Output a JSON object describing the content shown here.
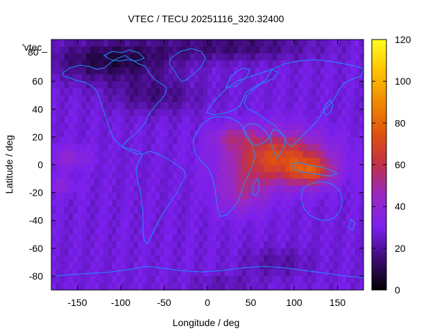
{
  "chart_data": {
    "type": "heatmap",
    "title": "VTEC / TECU 20251116_320.32400",
    "xlabel": "Longitude / deg",
    "ylabel": "Latitude / deg",
    "xlim": [
      -180,
      180
    ],
    "ylim": [
      -90,
      90
    ],
    "x_ticks": [
      "-150",
      "-100",
      "-50",
      "0",
      "50",
      "100",
      "150"
    ],
    "x_tick_values": [
      -150,
      -100,
      -50,
      0,
      50,
      100,
      150
    ],
    "y_ticks": [
      "60",
      "40",
      "20",
      "0",
      "-20",
      "-40",
      "-60",
      "-80"
    ],
    "y_tick_values": [
      60,
      40,
      20,
      0,
      -20,
      -40,
      -60,
      -80
    ],
    "y_top_tick_partial": "80",
    "legend_key": "'vtec_",
    "colorbar": {
      "ticks": [
        "120",
        "100",
        "80",
        "60",
        "40",
        "20",
        "0"
      ],
      "tick_values": [
        120,
        100,
        80,
        60,
        40,
        20,
        0
      ],
      "range": [
        0,
        120
      ],
      "palette": "black-purple-red-orange-yellow"
    },
    "coastline_color": "#1e90ff",
    "grid": false
  }
}
